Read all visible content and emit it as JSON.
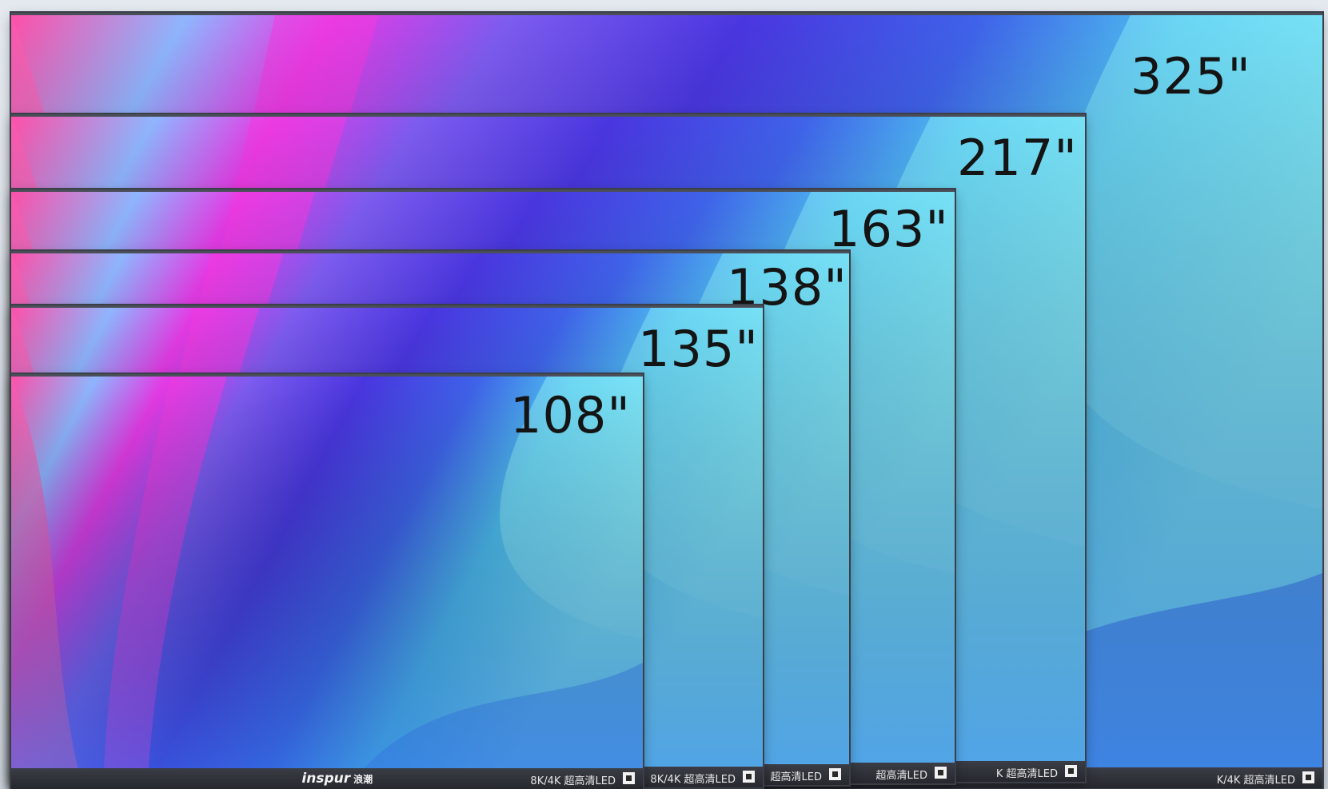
{
  "image": {
    "description_free": true,
    "background_color": "#d6dce4",
    "bezel_color": "#2b2d33",
    "label_color": "#141414"
  },
  "screens": [
    {
      "id": "s325",
      "size_label": "325\"",
      "bezel_tag": "K/4K 超高清LED"
    },
    {
      "id": "s217",
      "size_label": "217\"",
      "bezel_tag": "K 超高清LED"
    },
    {
      "id": "s163",
      "size_label": "163\"",
      "bezel_tag": "超高清LED"
    },
    {
      "id": "s138",
      "size_label": "138\"",
      "bezel_tag": "超高清LED"
    },
    {
      "id": "s135",
      "size_label": "135\"",
      "bezel_tag": "8K/4K 超高清LED"
    },
    {
      "id": "s108",
      "size_label": "108\"",
      "bezel_tag": "8K/4K 超高清LED",
      "brand": "inspur",
      "brand_cn": "浪潮"
    }
  ]
}
